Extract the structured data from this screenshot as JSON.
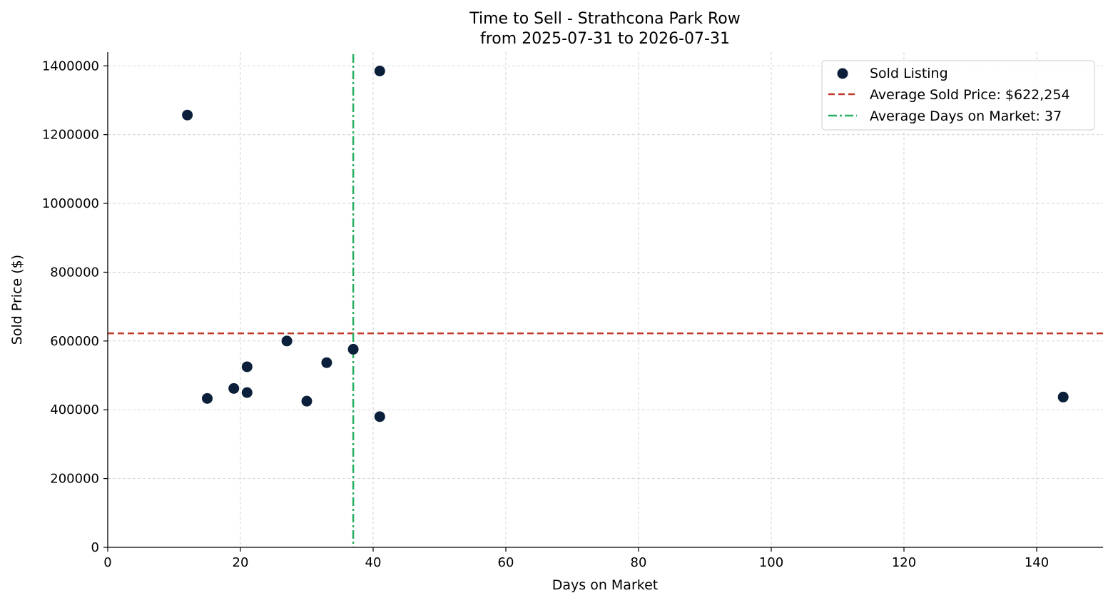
{
  "chart_data": {
    "type": "scatter",
    "title": "Time to Sell - Strathcona Park Row",
    "subtitle": "from 2025-07-31 to 2026-07-31",
    "xlabel": "Days on Market",
    "ylabel": "Sold Price ($)",
    "xlim": [
      0,
      150
    ],
    "ylim": [
      0,
      1440000
    ],
    "xticks": [
      0,
      20,
      40,
      60,
      80,
      100,
      120,
      140
    ],
    "yticks": [
      0,
      200000,
      400000,
      600000,
      800000,
      1000000,
      1200000,
      1400000
    ],
    "grid": true,
    "legend_position": "top-right",
    "series": [
      {
        "name": "Sold Listing",
        "color": "#0b1f3a",
        "points": [
          {
            "x": 12,
            "y": 1257000
          },
          {
            "x": 15,
            "y": 433000
          },
          {
            "x": 19,
            "y": 462000
          },
          {
            "x": 21,
            "y": 525000
          },
          {
            "x": 21,
            "y": 450000
          },
          {
            "x": 27,
            "y": 600000
          },
          {
            "x": 30,
            "y": 425000
          },
          {
            "x": 33,
            "y": 537000
          },
          {
            "x": 37,
            "y": 576000
          },
          {
            "x": 41,
            "y": 1385000
          },
          {
            "x": 41,
            "y": 380000
          },
          {
            "x": 144,
            "y": 437000
          }
        ]
      }
    ],
    "reference_lines": [
      {
        "orientation": "horizontal",
        "value": 622254,
        "label": "Average Sold Price: $622,254",
        "color": "#c0392b",
        "style": "dashed"
      },
      {
        "orientation": "vertical",
        "value": 37,
        "label": "Average Days on Market: 37",
        "color": "#27ae60",
        "style": "dashdot"
      }
    ]
  }
}
